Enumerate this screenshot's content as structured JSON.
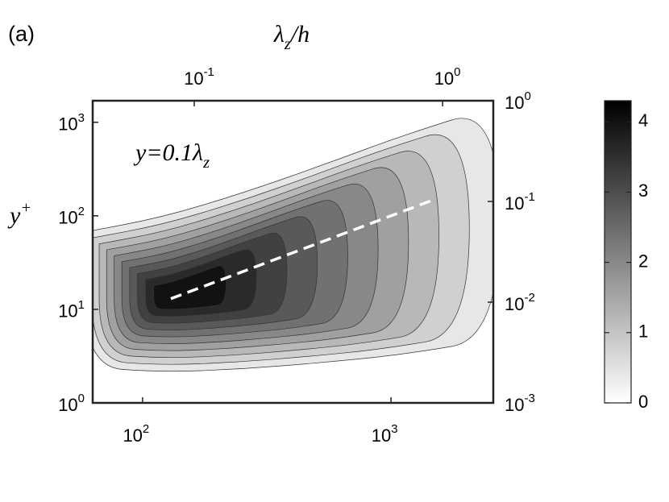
{
  "panel_label": "(a)",
  "chart_data": {
    "type": "contour",
    "x2_label": "λ_z/h",
    "y_label": "y^+",
    "annotation": "y=0.1λ_z",
    "xlim": [
      63,
      2580
    ],
    "xticks": [
      {
        "value": 100,
        "label": "10^2"
      },
      {
        "value": 1000,
        "label": "10^3"
      }
    ],
    "ylim": [
      1,
      1700
    ],
    "yticks": [
      {
        "value": 1,
        "label": "10^0"
      },
      {
        "value": 10,
        "label": "10^1"
      },
      {
        "value": 100,
        "label": "10^2"
      },
      {
        "value": 1000,
        "label": "10^3"
      }
    ],
    "x2lim": [
      0.039,
      1.6
    ],
    "x2ticks": [
      {
        "value": 0.1,
        "label": "10^-1"
      },
      {
        "value": 1,
        "label": "10^0"
      }
    ],
    "y2lim": [
      0.001,
      1
    ],
    "y2ticks": [
      {
        "value": 0.001,
        "label": "10^-3"
      },
      {
        "value": 0.01,
        "label": "10^-2"
      },
      {
        "value": 0.1,
        "label": "10^-1"
      },
      {
        "value": 1,
        "label": "10^0"
      }
    ],
    "log_scale": true,
    "levels": [
      0.4,
      0.8,
      1.2,
      1.6,
      2.0,
      2.4,
      2.8,
      3.2,
      3.6,
      4.0
    ],
    "ref_line": {
      "x": [
        130,
        1500
      ],
      "y": [
        13,
        150
      ]
    },
    "colorbar": {
      "lim": [
        0,
        4.3
      ],
      "ticks": [
        0,
        1,
        2,
        3,
        4
      ]
    }
  }
}
